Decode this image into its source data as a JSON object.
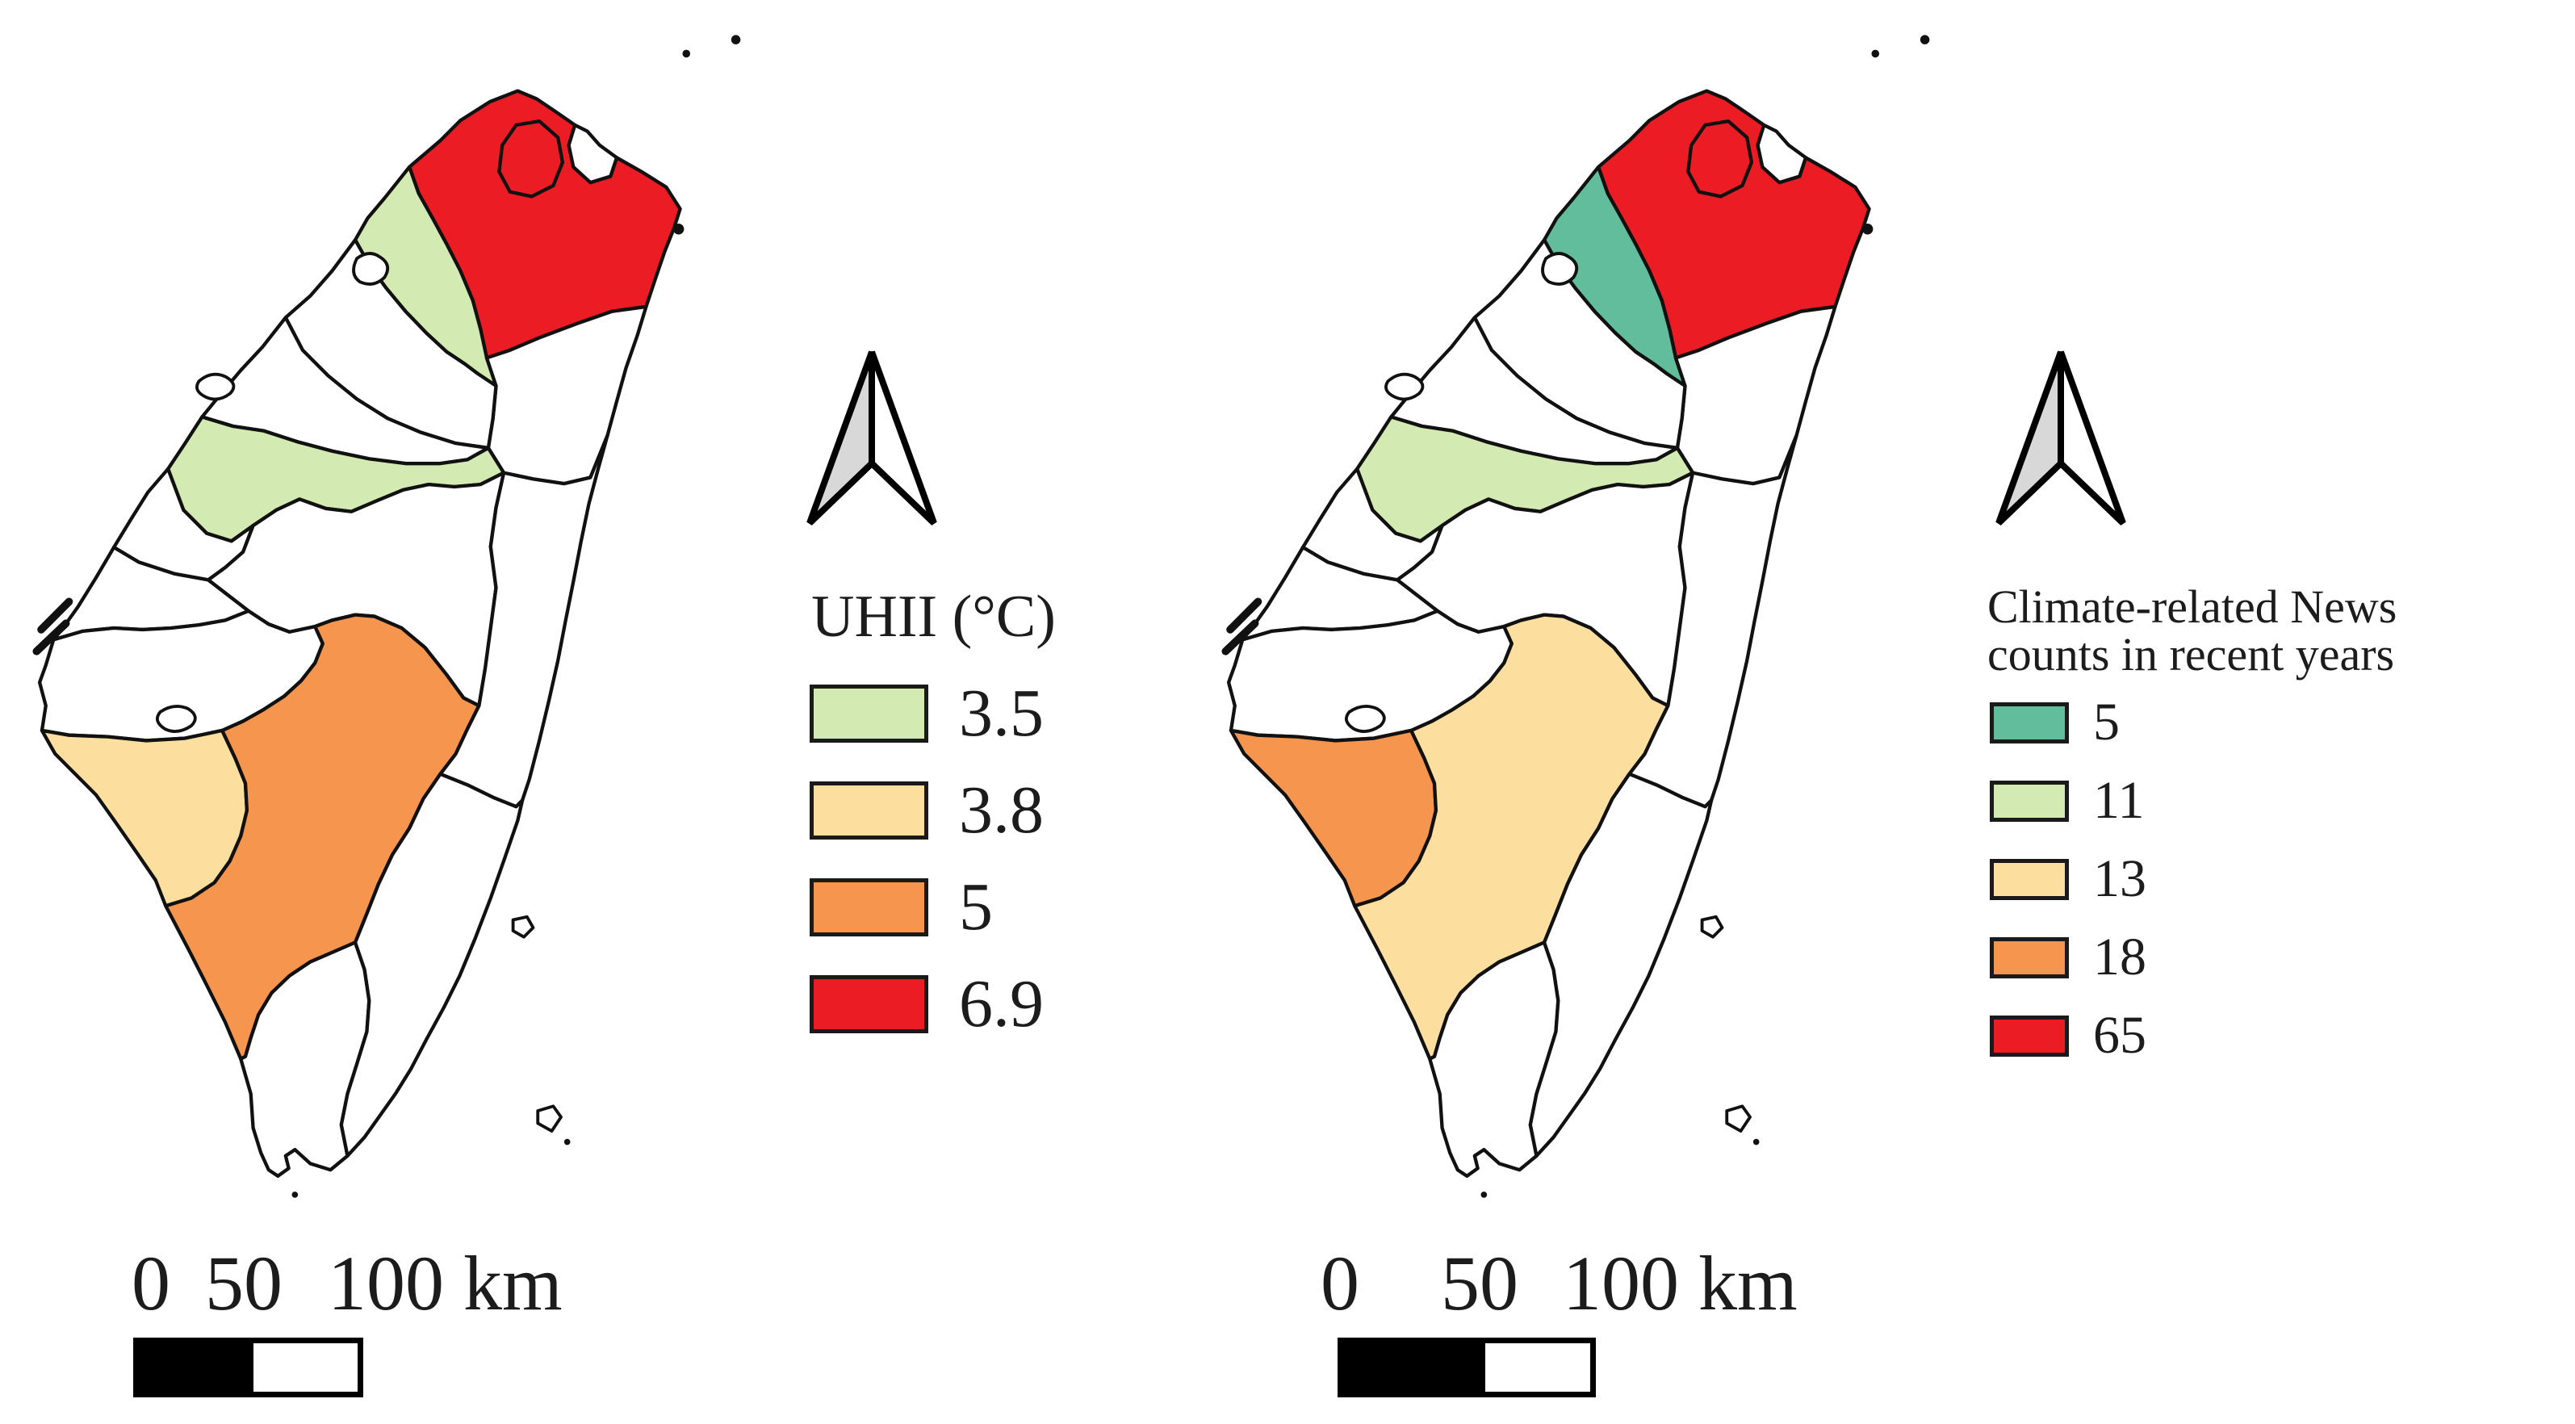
{
  "figure": {
    "type": "choropleth-map-pair",
    "region_shown": "Taiwan counties",
    "background": "#ffffff"
  },
  "palette": {
    "green_light": "#d3eab2",
    "tan": "#fcdf9e",
    "orange": "#f6954e",
    "red": "#ec1c24",
    "teal": "#62bd9c",
    "white": "#ffffff",
    "arrow_gray": "#d8d8d8",
    "border": "#111111",
    "text": "#1c1c1c"
  },
  "icons": {
    "north_arrow": "north-arrow"
  },
  "maps": [
    {
      "id": "uhii",
      "legend_title_line1": "UHII (°C)",
      "legend_title_line2": "",
      "legend": [
        {
          "label": "3.5",
          "color_key": "green_light"
        },
        {
          "label": "3.8",
          "color_key": "tan"
        },
        {
          "label": "5",
          "color_key": "orange"
        },
        {
          "label": "6.9",
          "color_key": "red"
        }
      ],
      "region_fills": {
        "new-taipei": "red",
        "taipei": "red",
        "taoyuan": "green_light",
        "taichung": "green_light",
        "tainan": "tan",
        "kaohsiung": "orange"
      },
      "scale_bar": {
        "labels": [
          "0",
          "50",
          "100 km"
        ]
      }
    },
    {
      "id": "news",
      "legend_title_line1": "Climate-related News",
      "legend_title_line2": "counts in recent years",
      "legend": [
        {
          "label": "5",
          "color_key": "teal"
        },
        {
          "label": "11",
          "color_key": "green_light"
        },
        {
          "label": "13",
          "color_key": "tan"
        },
        {
          "label": "18",
          "color_key": "orange"
        },
        {
          "label": "65",
          "color_key": "red"
        }
      ],
      "region_fills": {
        "new-taipei": "red",
        "taipei": "red",
        "taoyuan": "teal",
        "taichung": "green_light",
        "tainan": "orange",
        "kaohsiung": "tan"
      },
      "scale_bar": {
        "labels": [
          "0",
          "50",
          "100 km"
        ]
      }
    }
  ]
}
